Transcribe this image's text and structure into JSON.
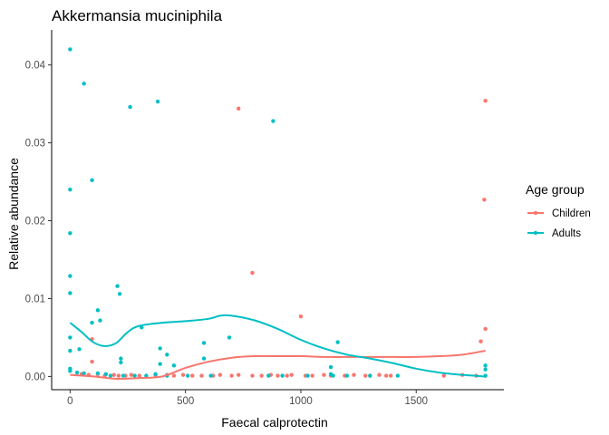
{
  "chart_data": {
    "type": "scatter",
    "title": "Akkermansia muciniphila",
    "xlabel": "Faecal calprotectin",
    "ylabel": "Relative abundance",
    "xlim": [
      -80,
      1880
    ],
    "ylim": [
      -0.0017,
      0.0445
    ],
    "xticks": [
      0,
      500,
      1000,
      1500
    ],
    "xtick_labels": [
      "0",
      "500",
      "1000",
      "1500"
    ],
    "yticks": [
      0,
      0.01,
      0.02,
      0.03,
      0.04
    ],
    "ytick_labels": [
      "0.00",
      "0.01",
      "0.02",
      "0.03",
      "0.04"
    ],
    "grid": false,
    "legend": {
      "title": "Age group",
      "position": "right",
      "entries": [
        "Children",
        "Adults"
      ]
    },
    "series": [
      {
        "name": "Children",
        "color": "#F8766D",
        "points": [
          [
            730,
            0.0344
          ],
          [
            1800,
            0.0354
          ],
          [
            1795,
            0.0227
          ],
          [
            790,
            0.0133
          ],
          [
            1000,
            0.0077
          ],
          [
            1800,
            0.0061
          ],
          [
            1780,
            0.0045
          ],
          [
            95,
            0.0048
          ],
          [
            95,
            0.0019
          ],
          [
            50,
            0.0003
          ],
          [
            80,
            0.0002
          ],
          [
            120,
            0.0003
          ],
          [
            150,
            0.0001
          ],
          [
            190,
            0.0002
          ],
          [
            210,
            0.0001
          ],
          [
            240,
            0.0001
          ],
          [
            265,
            0.0002
          ],
          [
            300,
            0.0001
          ],
          [
            370,
            0.0002
          ],
          [
            420,
            0.0002
          ],
          [
            450,
            0.0001
          ],
          [
            490,
            0.0002
          ],
          [
            530,
            0.0001
          ],
          [
            570,
            0.0001
          ],
          [
            620,
            0.0001
          ],
          [
            650,
            0.0002
          ],
          [
            700,
            0.0001
          ],
          [
            730,
            0.0002
          ],
          [
            790,
            0.0001
          ],
          [
            830,
            0.0001
          ],
          [
            870,
            0.0002
          ],
          [
            900,
            0.0001
          ],
          [
            940,
            0.0001
          ],
          [
            960,
            0.0002
          ],
          [
            1020,
            0.0001
          ],
          [
            1050,
            0.0001
          ],
          [
            1100,
            0.0002
          ],
          [
            1130,
            0.0001
          ],
          [
            1190,
            0.0001
          ],
          [
            1230,
            0.0002
          ],
          [
            1280,
            0.0001
          ],
          [
            1300,
            0.0001
          ],
          [
            1340,
            0.0002
          ],
          [
            1370,
            0.0001
          ],
          [
            1390,
            0.0001
          ],
          [
            1620,
            0.0001
          ],
          [
            1700,
            0.0002
          ],
          [
            1760,
            0.0001
          ],
          [
            1800,
            0.0001
          ]
        ],
        "smooth": [
          [
            0,
            0.0002
          ],
          [
            100,
            0.0
          ],
          [
            200,
            -0.0003
          ],
          [
            300,
            -0.0002
          ],
          [
            400,
            0.0
          ],
          [
            500,
            0.0011
          ],
          [
            600,
            0.0019
          ],
          [
            700,
            0.0024
          ],
          [
            800,
            0.0026
          ],
          [
            900,
            0.0026
          ],
          [
            1000,
            0.0026
          ],
          [
            1100,
            0.0025
          ],
          [
            1200,
            0.0025
          ],
          [
            1300,
            0.0025
          ],
          [
            1400,
            0.0025
          ],
          [
            1500,
            0.0025
          ],
          [
            1600,
            0.0026
          ],
          [
            1700,
            0.0028
          ],
          [
            1800,
            0.0033
          ]
        ]
      },
      {
        "name": "Adults",
        "color": "#00BFC4",
        "points": [
          [
            0,
            0.042
          ],
          [
            60,
            0.0376
          ],
          [
            380,
            0.0353
          ],
          [
            260,
            0.0346
          ],
          [
            880,
            0.0328
          ],
          [
            95,
            0.0252
          ],
          [
            0,
            0.024
          ],
          [
            0,
            0.0184
          ],
          [
            0,
            0.0129
          ],
          [
            0,
            0.0107
          ],
          [
            205,
            0.0116
          ],
          [
            215,
            0.0106
          ],
          [
            120,
            0.0085
          ],
          [
            130,
            0.0072
          ],
          [
            95,
            0.0069
          ],
          [
            310,
            0.0063
          ],
          [
            0,
            0.005
          ],
          [
            690,
            0.005
          ],
          [
            0,
            0.0033
          ],
          [
            40,
            0.0035
          ],
          [
            390,
            0.0036
          ],
          [
            420,
            0.0028
          ],
          [
            580,
            0.0043
          ],
          [
            580,
            0.0023
          ],
          [
            1160,
            0.0044
          ],
          [
            220,
            0.0023
          ],
          [
            220,
            0.0018
          ],
          [
            390,
            0.0016
          ],
          [
            450,
            0.0014
          ],
          [
            0,
            0.001
          ],
          [
            0,
            0.0007
          ],
          [
            30,
            0.0005
          ],
          [
            60,
            0.0004
          ],
          [
            120,
            0.0004
          ],
          [
            155,
            0.0003
          ],
          [
            175,
            0.0001
          ],
          [
            230,
            0.0001
          ],
          [
            280,
            0.0001
          ],
          [
            330,
            0.0001
          ],
          [
            370,
            0.0003
          ],
          [
            420,
            0.0001
          ],
          [
            510,
            0.0001
          ],
          [
            610,
            0.0001
          ],
          [
            860,
            0.0001
          ],
          [
            920,
            0.0001
          ],
          [
            1030,
            0.0001
          ],
          [
            1130,
            0.0012
          ],
          [
            1130,
            0.0003
          ],
          [
            1140,
            0.0001
          ],
          [
            1200,
            0.0001
          ],
          [
            1300,
            0.0001
          ],
          [
            1420,
            0.0001
          ],
          [
            1800,
            0.0014
          ],
          [
            1800,
            0.0009
          ],
          [
            1800,
            0.0001
          ]
        ],
        "smooth": [
          [
            0,
            0.0069
          ],
          [
            50,
            0.0057
          ],
          [
            100,
            0.0044
          ],
          [
            150,
            0.0039
          ],
          [
            200,
            0.0043
          ],
          [
            250,
            0.0057
          ],
          [
            300,
            0.0065
          ],
          [
            400,
            0.0069
          ],
          [
            500,
            0.0071
          ],
          [
            600,
            0.0074
          ],
          [
            650,
            0.0078
          ],
          [
            700,
            0.0078
          ],
          [
            800,
            0.0072
          ],
          [
            900,
            0.0061
          ],
          [
            1000,
            0.0047
          ],
          [
            1100,
            0.0036
          ],
          [
            1200,
            0.0028
          ],
          [
            1300,
            0.0023
          ],
          [
            1400,
            0.0017
          ],
          [
            1500,
            0.001
          ],
          [
            1600,
            0.0005
          ],
          [
            1700,
            0.0002
          ],
          [
            1800,
            0.0
          ]
        ]
      }
    ]
  }
}
